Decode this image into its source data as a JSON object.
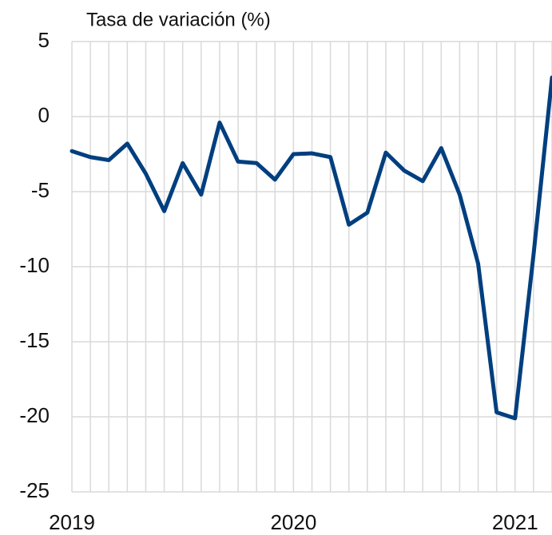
{
  "chart_data": {
    "type": "line",
    "y_label": "Tasa de variación (%)",
    "categories": [
      "2019",
      null,
      null,
      null,
      null,
      null,
      null,
      null,
      null,
      null,
      null,
      null,
      "2020",
      null,
      null,
      null,
      null,
      null,
      null,
      null,
      null,
      null,
      null,
      null,
      "2021",
      null,
      null
    ],
    "series": [
      {
        "name": "Tasa de variación",
        "color": "#003f7f",
        "values": [
          -2.3,
          -2.7,
          -2.9,
          -1.8,
          -3.8,
          -6.3,
          -3.1,
          -5.2,
          -0.4,
          -3.0,
          -3.1,
          -4.2,
          -2.5,
          -2.45,
          -2.7,
          -7.2,
          -6.4,
          -2.4,
          -3.6,
          -4.3,
          -2.1,
          -5.2,
          -9.8,
          -19.7,
          -20.1,
          -9.2,
          2.6
        ]
      }
    ],
    "ylim": [
      -25,
      5
    ],
    "yticks": [
      -25,
      -20,
      -15,
      -10,
      -5,
      0,
      5
    ],
    "grid": true
  }
}
